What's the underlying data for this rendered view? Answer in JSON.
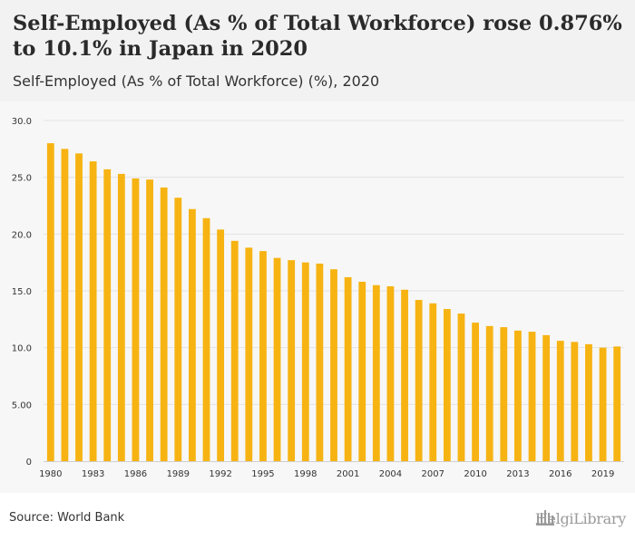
{
  "header": {
    "title": "Self-Employed (As % of Total Workforce) rose 0.876% to 10.1% in Japan in 2020",
    "subtitle": "Self-Employed (As % of Total Workforce) (%), 2020"
  },
  "footer": {
    "source": "Source: World Bank",
    "logo_text": "HelgiLibrary"
  },
  "colors": {
    "bar": "#f6b312",
    "grid": "#e3e3e3",
    "axis_text": "#333333"
  },
  "chart_data": {
    "type": "bar",
    "title": "Self-Employed (As % of Total Workforce) rose 0.876% to 10.1% in Japan in 2020",
    "subtitle": "Self-Employed (As % of Total Workforce) (%), 2020",
    "xlabel": "",
    "ylabel": "",
    "ylim": [
      0,
      30
    ],
    "grid": true,
    "legend": "none",
    "yticks": [
      "0",
      "5.00",
      "10.0",
      "15.0",
      "20.0",
      "25.0",
      "30.0"
    ],
    "xtick_labels": [
      "1980",
      "1983",
      "1986",
      "1989",
      "1992",
      "1995",
      "1998",
      "2001",
      "2004",
      "2007",
      "2010",
      "2013",
      "2016",
      "2019"
    ],
    "categories": [
      "1980",
      "1981",
      "1982",
      "1983",
      "1984",
      "1985",
      "1986",
      "1987",
      "1988",
      "1989",
      "1990",
      "1991",
      "1992",
      "1993",
      "1994",
      "1995",
      "1996",
      "1997",
      "1998",
      "1999",
      "2000",
      "2001",
      "2002",
      "2003",
      "2004",
      "2005",
      "2006",
      "2007",
      "2008",
      "2009",
      "2010",
      "2011",
      "2012",
      "2013",
      "2014",
      "2015",
      "2016",
      "2017",
      "2018",
      "2019",
      "2020"
    ],
    "values": [
      28.0,
      27.5,
      27.1,
      26.4,
      25.7,
      25.3,
      24.9,
      24.8,
      24.1,
      23.2,
      22.2,
      21.4,
      20.4,
      19.4,
      18.8,
      18.5,
      17.9,
      17.7,
      17.5,
      17.4,
      16.9,
      16.2,
      15.8,
      15.5,
      15.4,
      15.1,
      14.2,
      13.9,
      13.4,
      13.0,
      12.2,
      11.9,
      11.8,
      11.5,
      11.4,
      11.1,
      10.6,
      10.5,
      10.3,
      10.0,
      10.1
    ]
  }
}
